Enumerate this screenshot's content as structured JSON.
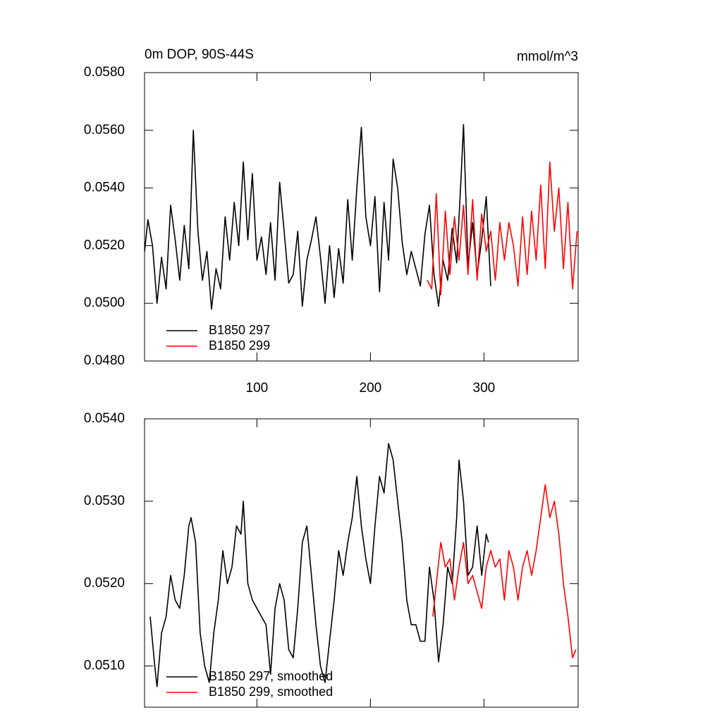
{
  "chart_data": [
    {
      "type": "line",
      "title": "0m DOP, 90S-44S",
      "subtitle": "mmol/m^3",
      "xlim": [
        1,
        383
      ],
      "xticks": [
        100,
        200,
        300
      ],
      "xtick_labels": true,
      "ylim": [
        0.048,
        0.058
      ],
      "yticks": [
        {
          "value": 0.048,
          "label": "0.0480"
        },
        {
          "value": 0.05,
          "label": "0.0500"
        },
        {
          "value": 0.052,
          "label": "0.0520"
        },
        {
          "value": 0.054,
          "label": "0.0540"
        },
        {
          "value": 0.056,
          "label": "0.0560"
        },
        {
          "value": 0.058,
          "label": "0.0580"
        }
      ],
      "legend": "lower-left",
      "series": [
        {
          "name": "B1850 297",
          "color": "#000000",
          "x": [
            1,
            4,
            8,
            12,
            16,
            20,
            24,
            28,
            32,
            36,
            40,
            44,
            48,
            52,
            56,
            60,
            64,
            68,
            72,
            76,
            80,
            84,
            88,
            92,
            96,
            100,
            104,
            108,
            112,
            116,
            120,
            124,
            128,
            132,
            136,
            140,
            144,
            148,
            152,
            156,
            160,
            164,
            168,
            172,
            176,
            180,
            184,
            188,
            192,
            196,
            200,
            204,
            208,
            212,
            216,
            220,
            224,
            228,
            232,
            236,
            240,
            244,
            248,
            252,
            256,
            260,
            264,
            268,
            272,
            276,
            280,
            282,
            286,
            290,
            294,
            298,
            302,
            306
          ],
          "values": [
            0.0518,
            0.0529,
            0.052,
            0.05,
            0.0516,
            0.0505,
            0.0534,
            0.0522,
            0.0508,
            0.0527,
            0.0512,
            0.056,
            0.0525,
            0.0508,
            0.0518,
            0.0498,
            0.0512,
            0.0505,
            0.053,
            0.0515,
            0.0535,
            0.052,
            0.0549,
            0.0522,
            0.0545,
            0.0515,
            0.0523,
            0.051,
            0.0528,
            0.0508,
            0.0542,
            0.0525,
            0.0507,
            0.051,
            0.0525,
            0.0499,
            0.0515,
            0.0522,
            0.053,
            0.0516,
            0.05,
            0.052,
            0.0502,
            0.0519,
            0.0507,
            0.0536,
            0.0515,
            0.054,
            0.0561,
            0.053,
            0.052,
            0.0537,
            0.0504,
            0.0535,
            0.0515,
            0.055,
            0.054,
            0.0521,
            0.051,
            0.0518,
            0.0512,
            0.0506,
            0.0524,
            0.0534,
            0.051,
            0.0499,
            0.0515,
            0.0508,
            0.0526,
            0.0514,
            0.0545,
            0.0562,
            0.0513,
            0.0528,
            0.051,
            0.0522,
            0.0537,
            0.0506
          ]
        },
        {
          "name": "B1850 299",
          "color": "#ff0000",
          "x": [
            250,
            254,
            258,
            262,
            266,
            270,
            274,
            278,
            282,
            286,
            290,
            294,
            298,
            302,
            306,
            310,
            314,
            318,
            322,
            326,
            330,
            334,
            338,
            342,
            346,
            350,
            354,
            358,
            362,
            366,
            370,
            374,
            378,
            382
          ],
          "values": [
            0.0508,
            0.0505,
            0.0538,
            0.0503,
            0.0532,
            0.051,
            0.053,
            0.0515,
            0.0534,
            0.051,
            0.0536,
            0.0508,
            0.0531,
            0.0518,
            0.0525,
            0.0508,
            0.0528,
            0.0515,
            0.0528,
            0.052,
            0.0506,
            0.053,
            0.051,
            0.0532,
            0.0515,
            0.0541,
            0.0512,
            0.0549,
            0.0525,
            0.054,
            0.0512,
            0.0535,
            0.0505,
            0.0525
          ]
        }
      ]
    },
    {
      "type": "line",
      "xlim": [
        1,
        383
      ],
      "xticks": [
        100,
        200,
        300
      ],
      "xtick_labels": false,
      "ylim": [
        0.0505,
        0.054
      ],
      "yticks": [
        {
          "value": 0.051,
          "label": "0.0510"
        },
        {
          "value": 0.052,
          "label": "0.0520"
        },
        {
          "value": 0.053,
          "label": "0.0530"
        },
        {
          "value": 0.054,
          "label": "0.0540"
        }
      ],
      "legend": "lower-left",
      "series": [
        {
          "name": "B1850 297, smoothed",
          "color": "#000000",
          "x": [
            6,
            10,
            12,
            16,
            20,
            24,
            28,
            32,
            36,
            40,
            42,
            46,
            50,
            54,
            58,
            62,
            66,
            70,
            74,
            78,
            82,
            86,
            88,
            92,
            96,
            100,
            104,
            108,
            112,
            116,
            120,
            124,
            128,
            132,
            136,
            140,
            144,
            148,
            152,
            156,
            160,
            164,
            168,
            172,
            176,
            180,
            184,
            188,
            192,
            196,
            200,
            204,
            208,
            212,
            216,
            220,
            224,
            228,
            232,
            236,
            240,
            244,
            248,
            252,
            256,
            260,
            264,
            268,
            272,
            276,
            278,
            282,
            286,
            290,
            294,
            298,
            302,
            304
          ],
          "values": [
            0.0516,
            0.051,
            0.05075,
            0.0514,
            0.0516,
            0.0521,
            0.0518,
            0.0517,
            0.0521,
            0.0527,
            0.0528,
            0.0525,
            0.0514,
            0.051,
            0.0508,
            0.0514,
            0.0518,
            0.0524,
            0.052,
            0.0522,
            0.0527,
            0.0526,
            0.053,
            0.052,
            0.0518,
            0.0517,
            0.0516,
            0.0515,
            0.0509,
            0.0517,
            0.052,
            0.0518,
            0.0512,
            0.0511,
            0.0517,
            0.0525,
            0.0527,
            0.0521,
            0.0515,
            0.051,
            0.0508,
            0.0513,
            0.0518,
            0.0524,
            0.0521,
            0.0525,
            0.0528,
            0.0533,
            0.0527,
            0.0523,
            0.052,
            0.0527,
            0.0533,
            0.0531,
            0.0537,
            0.0535,
            0.053,
            0.0525,
            0.0518,
            0.0515,
            0.0515,
            0.0513,
            0.0513,
            0.0522,
            0.0518,
            0.05105,
            0.0515,
            0.0522,
            0.052,
            0.0528,
            0.0535,
            0.053,
            0.0521,
            0.0522,
            0.0527,
            0.0521,
            0.0526,
            0.0525
          ]
        },
        {
          "name": "B1850 299, smoothed",
          "color": "#ff0000",
          "x": [
            255,
            258,
            262,
            266,
            270,
            274,
            278,
            282,
            286,
            290,
            294,
            298,
            302,
            306,
            310,
            314,
            318,
            322,
            326,
            330,
            334,
            338,
            342,
            346,
            350,
            354,
            358,
            362,
            366,
            370,
            374,
            378,
            381
          ],
          "values": [
            0.0516,
            0.052,
            0.0525,
            0.0522,
            0.0523,
            0.0518,
            0.0522,
            0.0525,
            0.052,
            0.0521,
            0.0519,
            0.0517,
            0.0522,
            0.0524,
            0.0522,
            0.0523,
            0.0518,
            0.0524,
            0.0522,
            0.0518,
            0.0522,
            0.0524,
            0.0521,
            0.0524,
            0.0528,
            0.0532,
            0.0528,
            0.053,
            0.0526,
            0.052,
            0.0516,
            0.0511,
            0.0512
          ]
        }
      ]
    }
  ]
}
